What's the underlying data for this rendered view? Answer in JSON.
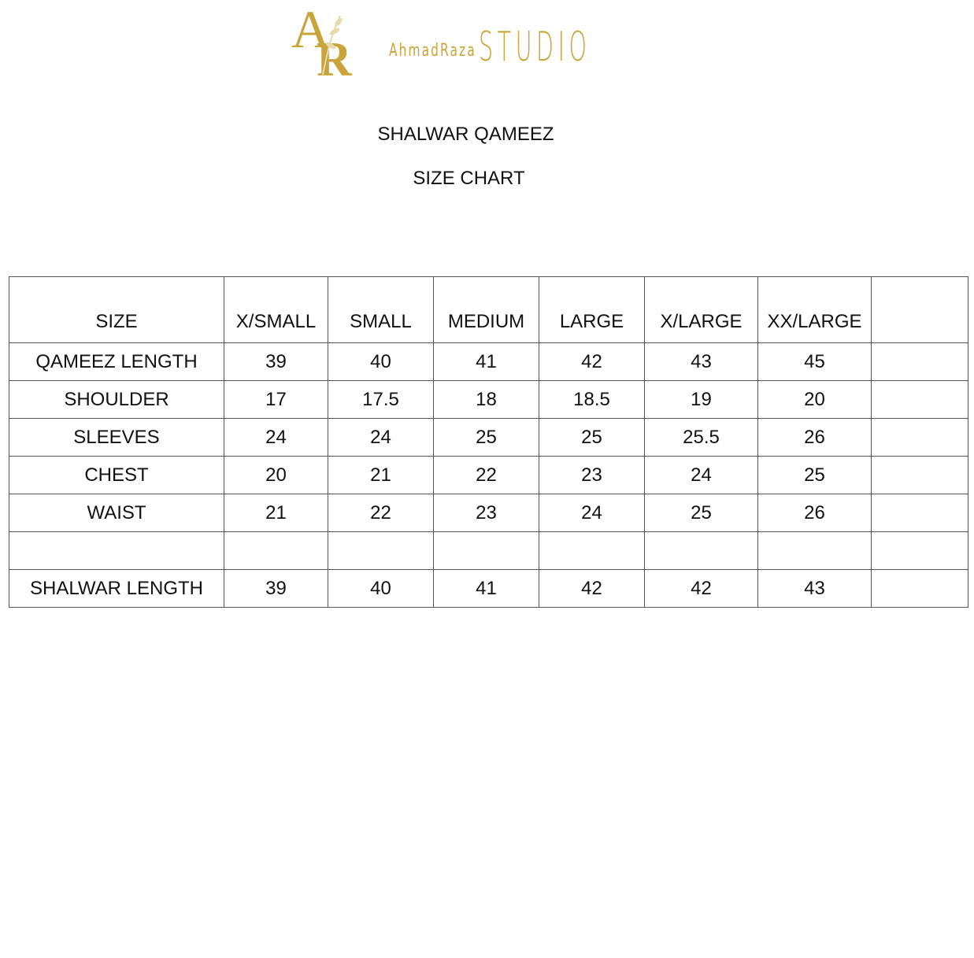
{
  "logo": {
    "monogram": "AR",
    "brand_name": "AhmadRaza",
    "brand_suffix": "STUDIO",
    "color": "#c9a43a"
  },
  "title": "SHALWAR QAMEEZ",
  "subtitle": "SIZE CHART",
  "table": {
    "headers": [
      "SIZE",
      "X/SMALL",
      "SMALL",
      "MEDIUM",
      "LARGE",
      "X/LARGE",
      "XX/LARGE",
      ""
    ],
    "rows": [
      {
        "label": "QAMEEZ LENGTH",
        "values": [
          "39",
          "40",
          "41",
          "42",
          "43",
          "45",
          ""
        ]
      },
      {
        "label": "SHOULDER",
        "values": [
          "17",
          "17.5",
          "18",
          "18.5",
          "19",
          "20",
          ""
        ]
      },
      {
        "label": "SLEEVES",
        "values": [
          "24",
          "24",
          "25",
          "25",
          "25.5",
          "26",
          ""
        ]
      },
      {
        "label": "CHEST",
        "values": [
          "20",
          "21",
          "22",
          "23",
          "24",
          "25",
          ""
        ]
      },
      {
        "label": "WAIST",
        "values": [
          "21",
          "22",
          "23",
          "24",
          "25",
          "26",
          ""
        ]
      },
      {
        "label": "",
        "values": [
          "",
          "",
          "",
          "",
          "",
          "",
          ""
        ]
      },
      {
        "label": "SHALWAR LENGTH",
        "values": [
          "39",
          "40",
          "41",
          "42",
          "42",
          "43",
          ""
        ]
      }
    ]
  }
}
